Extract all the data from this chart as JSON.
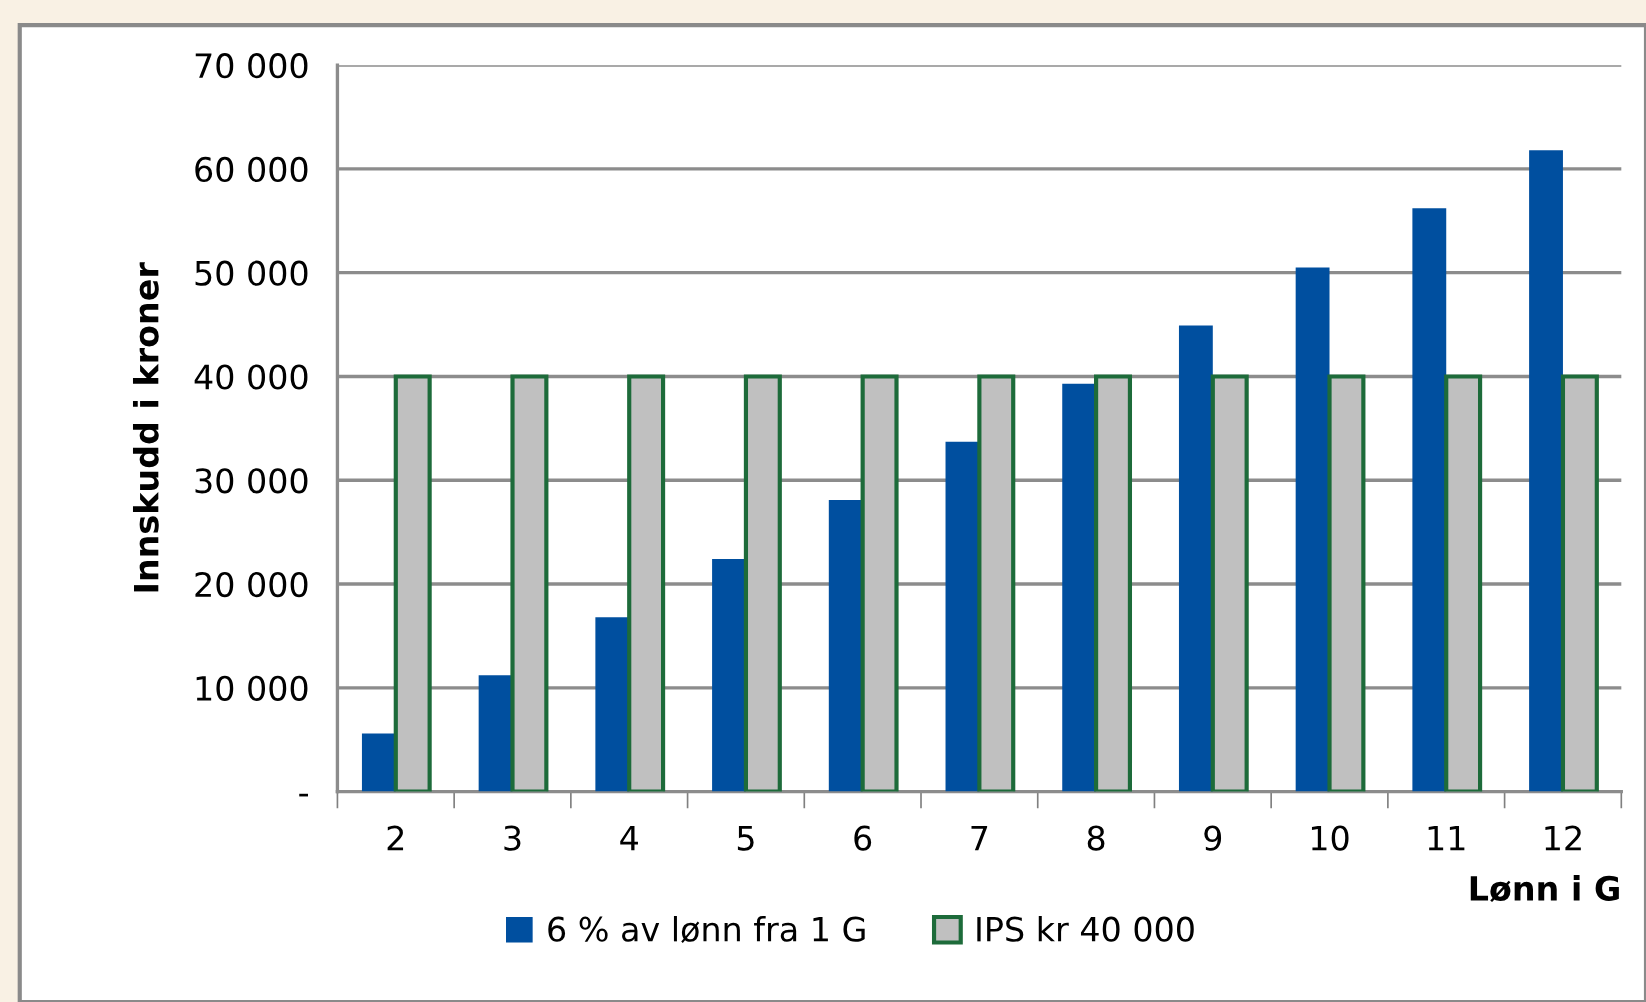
{
  "chart_data": {
    "type": "bar",
    "xlabel": "Lønn i G",
    "ylabel": "Innskudd i kroner",
    "categories": [
      "2",
      "3",
      "4",
      "5",
      "6",
      "7",
      "8",
      "9",
      "10",
      "11",
      "12"
    ],
    "series": [
      {
        "name": "6 % av lønn fra 1 G",
        "color": "#004f9f",
        "values": [
          5600,
          11200,
          16800,
          22400,
          28100,
          33700,
          39300,
          44900,
          50500,
          56200,
          61800
        ]
      },
      {
        "name": "IPS kr 40 000",
        "color": "#c0c0c0",
        "values": [
          40000,
          40000,
          40000,
          40000,
          40000,
          40000,
          40000,
          40000,
          40000,
          40000,
          40000
        ]
      }
    ],
    "ylim": [
      0,
      70000
    ],
    "yticks": [
      {
        "value": 0,
        "label": "-"
      },
      {
        "value": 10000,
        "label": "10 000"
      },
      {
        "value": 20000,
        "label": "20 000"
      },
      {
        "value": 30000,
        "label": "30 000"
      },
      {
        "value": 40000,
        "label": "40 000"
      },
      {
        "value": 50000,
        "label": "50 000"
      },
      {
        "value": 60000,
        "label": "60 000"
      },
      {
        "value": 70000,
        "label": "70 000"
      }
    ],
    "grid": "y",
    "legend": "bottom"
  }
}
